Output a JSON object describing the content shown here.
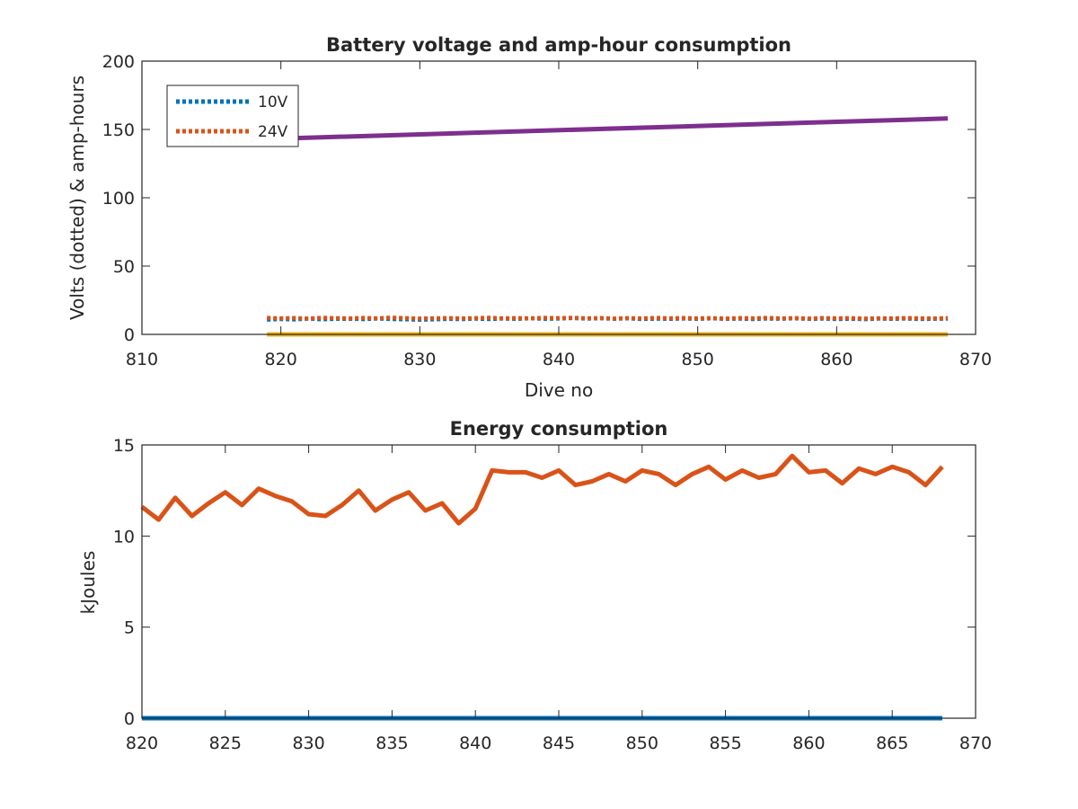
{
  "chart_data": [
    {
      "type": "line",
      "title": "Battery voltage and amp-hour consumption",
      "xlabel": "Dive no",
      "ylabel": "Volts (dotted) & amp-hours",
      "xlim": [
        810,
        870
      ],
      "ylim": [
        0,
        200
      ],
      "xticks": [
        810,
        820,
        830,
        840,
        850,
        860,
        870
      ],
      "yticks": [
        0,
        50,
        100,
        150,
        200
      ],
      "grid": false,
      "legend_position": "top-left",
      "series": [
        {
          "name": "10V",
          "style": "dotted",
          "color": "#0072BD",
          "x": [
            819,
            820,
            821,
            822,
            823,
            824,
            825,
            826,
            827,
            828,
            829,
            830,
            831,
            832,
            833,
            834,
            835,
            836,
            837,
            838,
            839,
            840,
            841,
            842,
            843,
            844,
            845,
            846,
            847,
            848,
            849,
            850,
            851,
            852,
            853,
            854,
            855,
            856,
            857,
            858,
            859,
            860,
            861,
            862,
            863,
            864,
            865,
            866,
            867,
            868
          ],
          "values": [
            10.8,
            11.2,
            10.9,
            11.5,
            11.0,
            11.3,
            11.4,
            11.1,
            11.6,
            11.2,
            11.0,
            10.7,
            10.9,
            11.3,
            11.1,
            11.5,
            11.2,
            11.6,
            11.3,
            11.8,
            11.4,
            11.6,
            11.9,
            11.5,
            11.8,
            11.4,
            11.7,
            11.2,
            11.5,
            11.3,
            11.6,
            11.4,
            11.7,
            11.3,
            11.5,
            11.2,
            11.6,
            11.4,
            11.7,
            11.3,
            11.5,
            11.2,
            11.4,
            11.1,
            11.5,
            11.3,
            11.6,
            11.2,
            11.4,
            11.5
          ]
        },
        {
          "name": "24V",
          "style": "dotted",
          "color": "#D95319",
          "x": [
            819,
            820,
            821,
            822,
            823,
            824,
            825,
            826,
            827,
            828,
            829,
            830,
            831,
            832,
            833,
            834,
            835,
            836,
            837,
            838,
            839,
            840,
            841,
            842,
            843,
            844,
            845,
            846,
            847,
            848,
            849,
            850,
            851,
            852,
            853,
            854,
            855,
            856,
            857,
            858,
            859,
            860,
            861,
            862,
            863,
            864,
            865,
            866,
            867,
            868
          ],
          "values": [
            12.1,
            11.8,
            12.0,
            11.6,
            12.2,
            11.9,
            11.7,
            12.1,
            11.8,
            12.3,
            11.9,
            11.6,
            11.8,
            12.0,
            11.7,
            11.9,
            12.2,
            11.8,
            12.0,
            11.7,
            12.1,
            11.9,
            12.2,
            11.8,
            12.0,
            11.6,
            11.9,
            11.7,
            12.1,
            11.8,
            12.0,
            11.7,
            11.9,
            11.6,
            12.0,
            11.8,
            12.1,
            11.7,
            11.9,
            11.6,
            12.0,
            11.8,
            11.9,
            11.6,
            11.8,
            11.7,
            12.0,
            11.8,
            11.7,
            11.9
          ]
        },
        {
          "style": "solid",
          "color": "#7E2F8E",
          "x": [
            819,
            868
          ],
          "values": [
            143,
            158
          ]
        },
        {
          "style": "solid",
          "color": "#EDB120",
          "x": [
            819,
            868
          ],
          "values": [
            0,
            0
          ]
        }
      ]
    },
    {
      "type": "line",
      "title": "Energy consumption",
      "xlabel": "",
      "ylabel": "kJoules",
      "xlim": [
        820,
        870
      ],
      "ylim": [
        0,
        15
      ],
      "xticks": [
        820,
        825,
        830,
        835,
        840,
        845,
        850,
        855,
        860,
        865,
        870
      ],
      "yticks": [
        0,
        5,
        10,
        15
      ],
      "grid": false,
      "series": [
        {
          "style": "solid",
          "color": "#D95319",
          "x": [
            820,
            821,
            822,
            823,
            824,
            825,
            826,
            827,
            828,
            829,
            830,
            831,
            832,
            833,
            834,
            835,
            836,
            837,
            838,
            839,
            840,
            841,
            842,
            843,
            844,
            845,
            846,
            847,
            848,
            849,
            850,
            851,
            852,
            853,
            854,
            855,
            856,
            857,
            858,
            859,
            860,
            861,
            862,
            863,
            864,
            865,
            866,
            867,
            868
          ],
          "values": [
            11.6,
            10.9,
            12.1,
            11.1,
            11.8,
            12.4,
            11.7,
            12.6,
            12.2,
            11.9,
            11.2,
            11.1,
            11.7,
            12.5,
            11.4,
            12.0,
            12.4,
            11.4,
            11.8,
            10.7,
            11.5,
            13.6,
            13.5,
            13.5,
            13.2,
            13.6,
            12.8,
            13.0,
            13.4,
            13.0,
            13.6,
            13.4,
            12.8,
            13.4,
            13.8,
            13.1,
            13.6,
            13.2,
            13.4,
            14.4,
            13.5,
            13.6,
            12.9,
            13.7,
            13.4,
            13.8,
            13.5,
            12.8,
            13.8
          ]
        },
        {
          "style": "solid",
          "color": "#0072BD",
          "x": [
            820,
            868
          ],
          "values": [
            0,
            0
          ]
        }
      ]
    }
  ]
}
